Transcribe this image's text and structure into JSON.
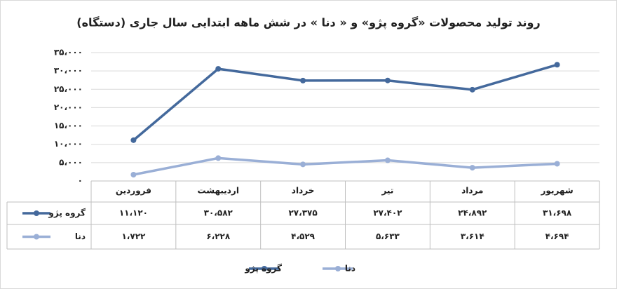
{
  "chart_data": {
    "type": "line",
    "title": "روند تولید محصولات «گروه پژو» و « دنا » در شش ماهه ابتدایی سال جاری (دستگاه)",
    "categories": [
      "فروردین",
      "اردیبهشت",
      "خرداد",
      "تیر",
      "مرداد",
      "شهریور"
    ],
    "series": [
      {
        "name": "گروه پژو",
        "color": "#44699c",
        "values": [
          11120,
          30582,
          27375,
          27402,
          24892,
          31698
        ],
        "value_labels": [
          "۱۱،۱۲۰",
          "۳۰،۵۸۲",
          "۲۷،۳۷۵",
          "۲۷،۴۰۲",
          "۲۴،۸۹۲",
          "۳۱،۶۹۸"
        ]
      },
      {
        "name": "دنا",
        "color": "#9aafd6",
        "values": [
          1722,
          6228,
          4529,
          5633,
          3614,
          4694
        ],
        "value_labels": [
          "۱،۷۲۲",
          "۶،۲۲۸",
          "۴،۵۲۹",
          "۵،۶۳۳",
          "۳،۶۱۴",
          "۴،۶۹۴"
        ]
      }
    ],
    "ylim": [
      0,
      35000
    ],
    "yticks": [
      {
        "value": 0,
        "label": "۰"
      },
      {
        "value": 5000,
        "label": "۵،۰۰۰"
      },
      {
        "value": 10000,
        "label": "۱۰،۰۰۰"
      },
      {
        "value": 15000,
        "label": "۱۵،۰۰۰"
      },
      {
        "value": 20000,
        "label": "۲۰،۰۰۰"
      },
      {
        "value": 25000,
        "label": "۲۵،۰۰۰"
      },
      {
        "value": 30000,
        "label": "۳۰،۰۰۰"
      },
      {
        "value": 35000,
        "label": "۳۵،۰۰۰"
      }
    ],
    "grid": true
  }
}
